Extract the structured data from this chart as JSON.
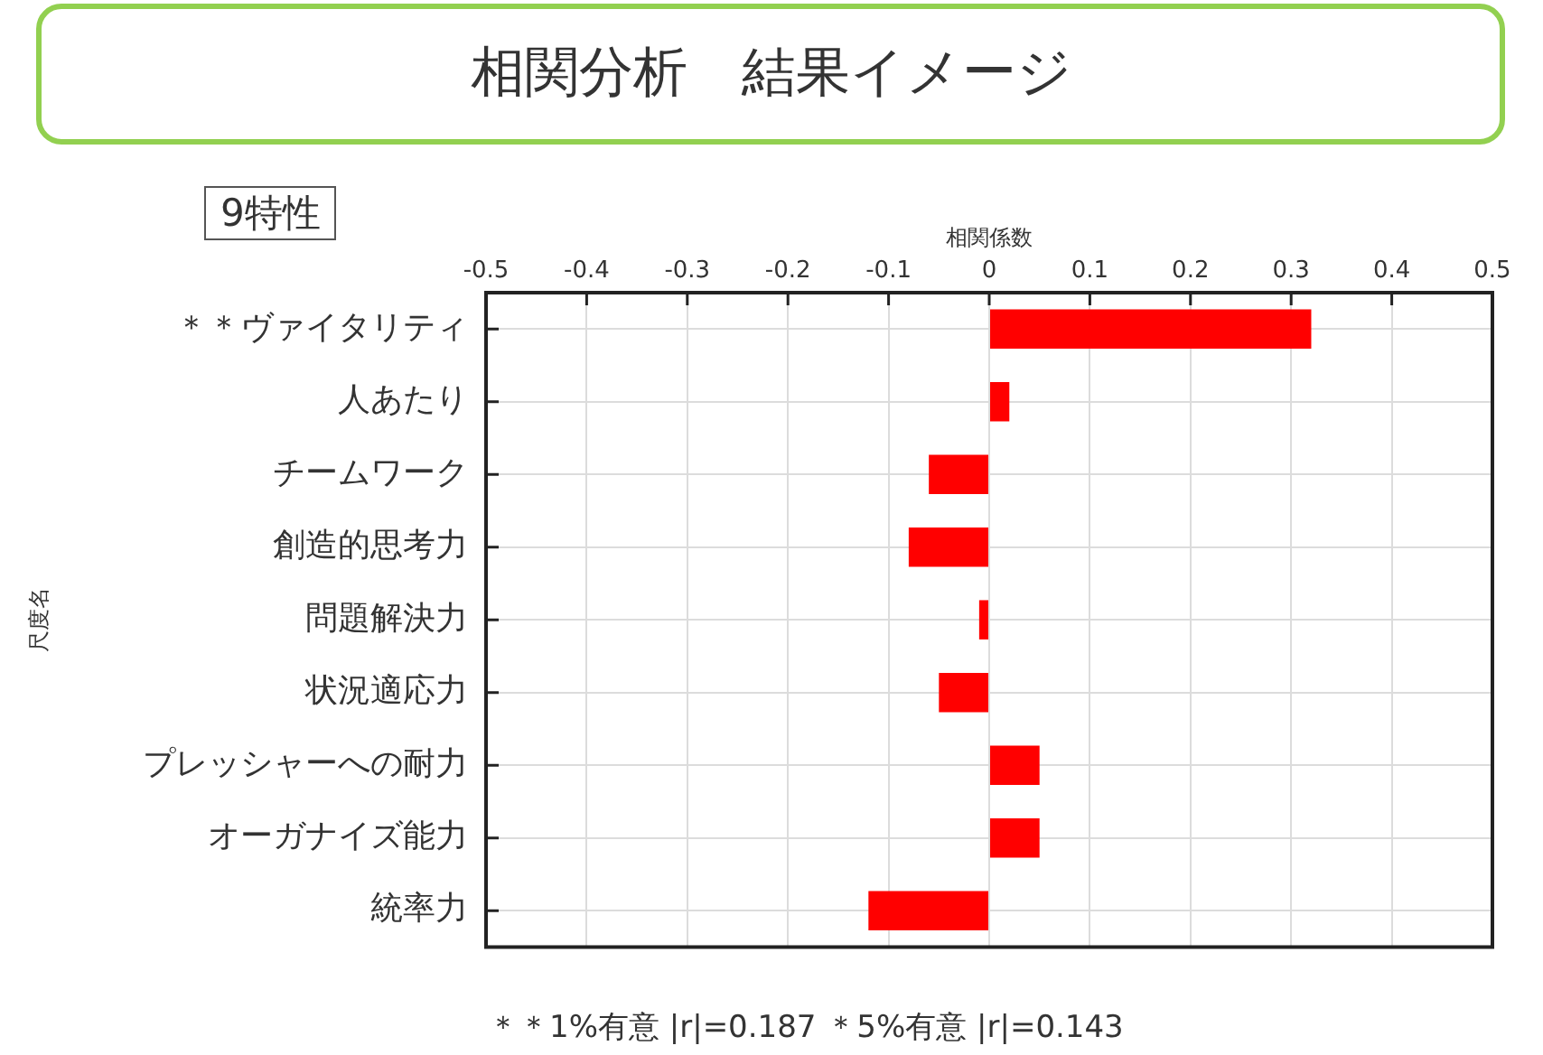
{
  "chart_data": {
    "type": "bar",
    "orientation": "horizontal",
    "title": "相関分析　結果イメージ",
    "subtitle": "9特性",
    "xlabel": "相関係数",
    "ylabel": "尺度名",
    "categories": [
      "＊＊ヴァイタリティ",
      "人あたり",
      "チームワーク",
      "創造的思考力",
      "問題解決力",
      "状況適応力",
      "プレッシャーへの耐力",
      "オーガナイズ能力",
      "統率力"
    ],
    "values": [
      0.32,
      0.02,
      -0.06,
      -0.08,
      -0.01,
      -0.05,
      0.05,
      0.05,
      -0.12
    ],
    "color": "#ff0000",
    "xlim": [
      -0.5,
      0.5
    ],
    "xticks": [
      -0.5,
      -0.4,
      -0.3,
      -0.2,
      -0.1,
      0,
      0.1,
      0.2,
      0.3,
      0.4,
      0.5
    ],
    "grid": true,
    "annotations": [
      "＊＊1%有意 |r|=0.187 ＊5%有意 |r|=0.143"
    ]
  }
}
